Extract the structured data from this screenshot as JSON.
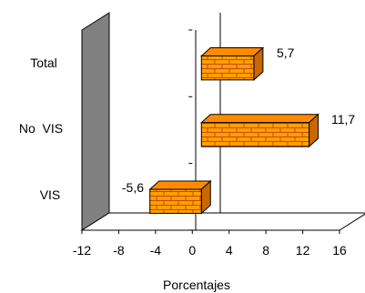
{
  "chart_data": {
    "type": "bar",
    "orientation": "horizontal",
    "three_d": true,
    "categories": [
      "Total",
      "No  VIS",
      "VIS"
    ],
    "values": [
      5.7,
      11.7,
      -5.6
    ],
    "value_labels": [
      "5,7",
      "11,7",
      "-5,6"
    ],
    "xlabel": "Porcentajes",
    "xlim": [
      -12,
      16
    ],
    "x_ticks": [
      -12,
      -8,
      -4,
      0,
      4,
      8,
      12,
      16
    ],
    "grid": false,
    "legend": "none",
    "colors": {
      "bar_face": "#ffa000",
      "bar_top": "#ff8c00",
      "bar_side": "#c86800",
      "brick_line": "#c84800",
      "bar_outline": "#000000",
      "side_wall": "#808080",
      "floor": "#ffffff",
      "axis": "#000000"
    }
  }
}
